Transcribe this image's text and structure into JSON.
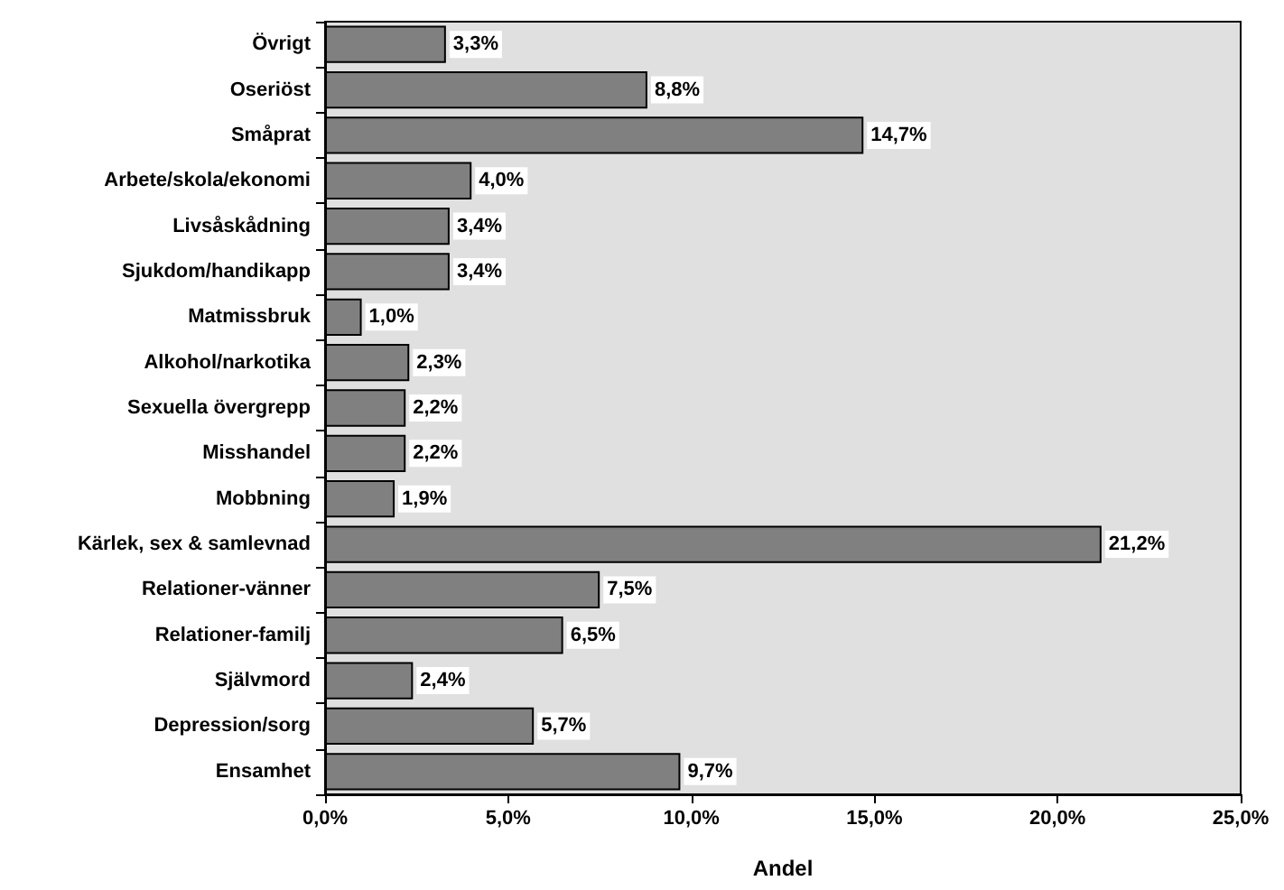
{
  "chart_data": {
    "type": "bar",
    "orientation": "horizontal",
    "xlabel": "Andel",
    "categories": [
      "Övrigt",
      "Oseriöst",
      "Småprat",
      "Arbete/skola/ekonomi",
      "Livsåskådning",
      "Sjukdom/handikapp",
      "Matmissbruk",
      "Alkohol/narkotika",
      "Sexuella övergrepp",
      "Misshandel",
      "Mobbning",
      "Kärlek, sex & samlevnad",
      "Relationer-vänner",
      "Relationer-familj",
      "Självmord",
      "Depression/sorg",
      "Ensamhet"
    ],
    "values": [
      3.3,
      8.8,
      14.7,
      4.0,
      3.4,
      3.4,
      1.0,
      2.3,
      2.2,
      2.2,
      1.9,
      21.2,
      7.5,
      6.5,
      2.4,
      5.7,
      9.7
    ],
    "value_labels": [
      "3,3%",
      "8,8%",
      "14,7%",
      "4,0%",
      "3,4%",
      "3,4%",
      "1,0%",
      "2,3%",
      "2,2%",
      "2,2%",
      "1,9%",
      "21,2%",
      "7,5%",
      "6,5%",
      "2,4%",
      "5,7%",
      "9,7%"
    ],
    "color": "#808080",
    "xlim": [
      0,
      25
    ],
    "xticks": [
      {
        "value": 0,
        "label": "0,0%"
      },
      {
        "value": 5,
        "label": "5,0%"
      },
      {
        "value": 10,
        "label": "10,0%"
      },
      {
        "value": 15,
        "label": "15,0%"
      },
      {
        "value": 20,
        "label": "20,0%"
      },
      {
        "value": 25,
        "label": "25,0%"
      }
    ],
    "grid": false
  }
}
